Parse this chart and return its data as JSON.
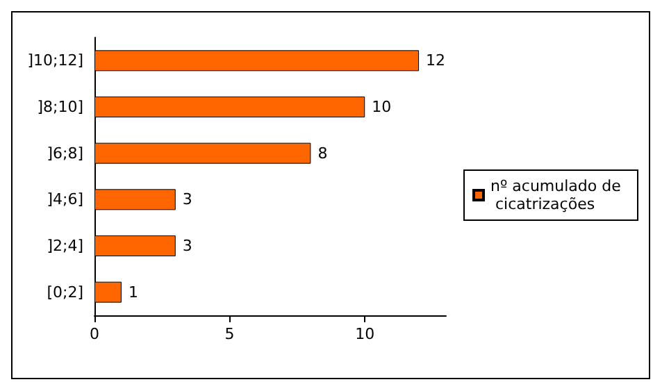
{
  "chart_data": {
    "type": "bar",
    "orientation": "horizontal",
    "categories": [
      "]10;12]",
      "]8;10]",
      "]6;8]",
      "]4;6]",
      "]2;4]",
      "[0;2]"
    ],
    "series": [
      {
        "name": "nº acumulado de cicatrizações",
        "color": "#ff6600",
        "values": [
          12,
          10,
          8,
          3,
          3,
          1
        ]
      }
    ],
    "xlim": [
      0,
      13
    ],
    "xticks": [
      0,
      5,
      10
    ],
    "data_labels": true,
    "grid": false,
    "legend": "right"
  }
}
